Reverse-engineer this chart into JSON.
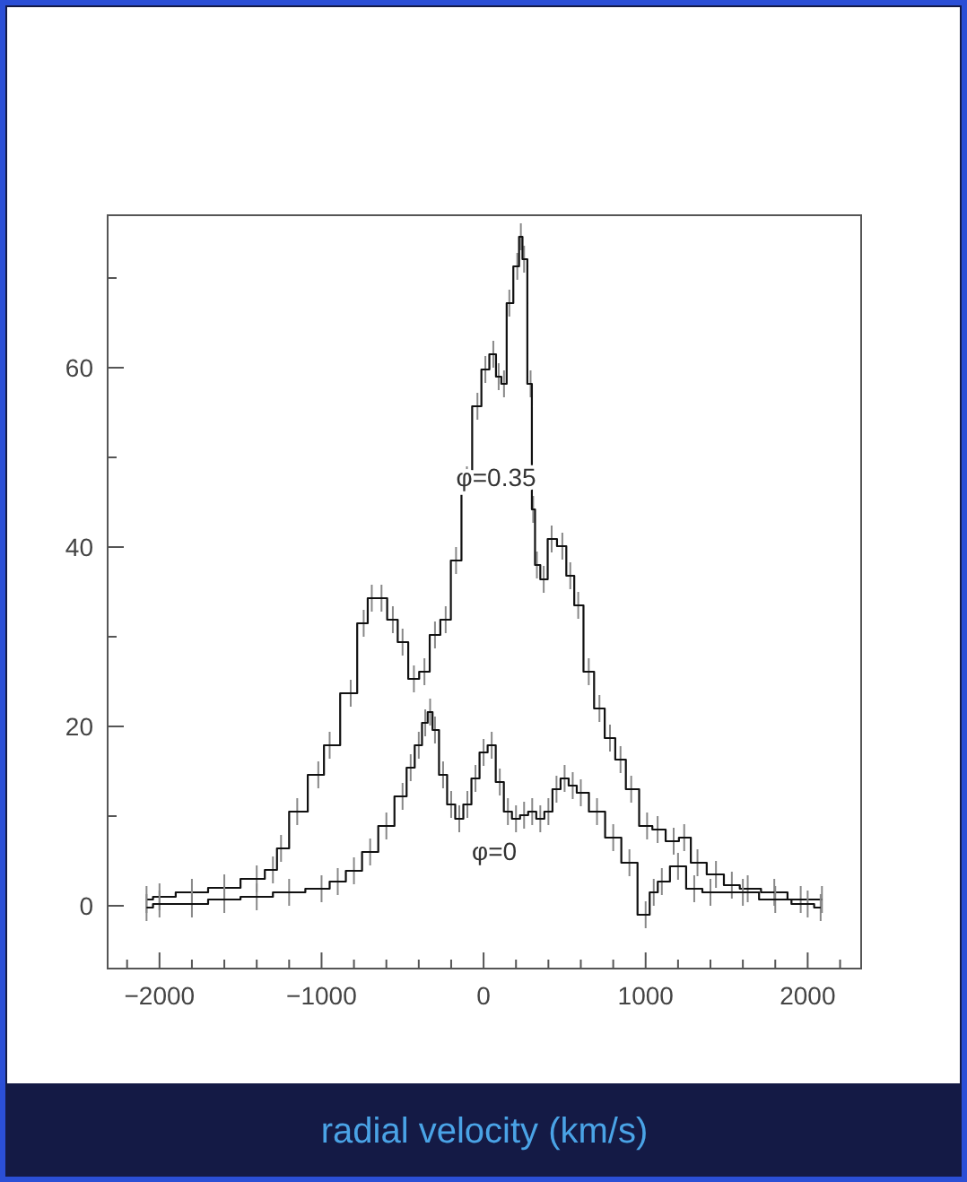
{
  "chart_data": {
    "type": "step",
    "xlabel": "radial velocity (km/s)",
    "xlim": [
      -2320,
      2330
    ],
    "ylim": [
      -7,
      77
    ],
    "xticks": [
      {
        "value": -2200,
        "label": null
      },
      {
        "value": -2000,
        "label": "−2000"
      },
      {
        "value": -1800,
        "label": null
      },
      {
        "value": -1600,
        "label": null
      },
      {
        "value": -1400,
        "label": null
      },
      {
        "value": -1200,
        "label": null
      },
      {
        "value": -1000,
        "label": "−1000"
      },
      {
        "value": -800,
        "label": null
      },
      {
        "value": -600,
        "label": null
      },
      {
        "value": -400,
        "label": null
      },
      {
        "value": -200,
        "label": null
      },
      0,
      {
        "value": 200,
        "label": null
      },
      {
        "value": 400,
        "label": null
      },
      {
        "value": 600,
        "label": null
      },
      {
        "value": 800,
        "label": null
      },
      1000,
      {
        "value": 1200,
        "label": null
      },
      {
        "value": 1400,
        "label": null
      },
      {
        "value": 1600,
        "label": null
      },
      {
        "value": 1800,
        "label": null
      },
      2000,
      {
        "value": 2200,
        "label": null
      }
    ],
    "yticks": [
      0,
      {
        "value": 10,
        "label": null
      },
      20,
      {
        "value": 30,
        "label": null
      },
      40,
      {
        "value": 50,
        "label": null
      },
      60,
      {
        "value": 70,
        "label": null
      }
    ],
    "grid": false,
    "marker": "none",
    "series": [
      {
        "color": "#111111",
        "x": [
          -2080,
          -2000,
          -1800,
          -1600,
          -1400,
          -1300,
          -1250,
          -1150,
          -1020,
          -950,
          -820,
          -740,
          -690,
          -630,
          -560,
          -500,
          -430,
          -365,
          -300,
          -234,
          -170,
          -103,
          -38,
          11,
          60,
          93,
          126,
          159,
          208,
          230,
          250,
          290,
          306,
          329,
          371,
          420,
          486,
          535,
          584,
          649,
          715,
          780,
          845,
          911,
          1009,
          1074,
          1173,
          1238,
          1320,
          1434,
          1532,
          1630,
          1794,
          1957,
          2088
        ],
        "values": [
          0.7,
          1,
          1.5,
          2,
          3,
          4,
          6.4,
          10.5,
          14.6,
          17.9,
          23.7,
          31.5,
          34.3,
          34.3,
          31.9,
          29.4,
          25.3,
          26.1,
          30.2,
          31.9,
          38.5,
          47.5,
          55.7,
          59.8,
          61.5,
          59,
          58.2,
          67.2,
          71.3,
          74.6,
          72.1,
          58.2,
          44.2,
          38,
          36.4,
          40.9,
          40.1,
          36.8,
          33.5,
          26.1,
          22,
          18.7,
          16.3,
          13,
          8.9,
          8.5,
          7.2,
          7.6,
          4.8,
          3.5,
          2.3,
          1.9,
          1.5,
          0.7,
          0.7
        ],
        "errors": [
          1.5,
          1.5,
          1.5,
          1.5,
          1.5,
          1.5,
          1.5,
          1.5,
          1.5,
          1.5,
          1.5,
          1.5,
          1.5,
          1.5,
          1.5,
          1.5,
          1.5,
          1.5,
          1.5,
          1.5,
          1.5,
          1.5,
          1.5,
          1.5,
          1.5,
          1.5,
          1.5,
          1.5,
          1.5,
          1.5,
          1.5,
          1.5,
          1.5,
          1.5,
          1.5,
          1.5,
          1.5,
          1.5,
          1.5,
          1.5,
          1.5,
          1.5,
          1.5,
          1.5,
          1.5,
          1.5,
          1.5,
          1.5,
          1.5,
          1.5,
          1.5,
          1.5,
          1.5,
          1.5,
          1.5
        ]
      },
      {
        "color": "#111111",
        "x": [
          -2080,
          -2000,
          -1800,
          -1600,
          -1400,
          -1200,
          -1000,
          -900,
          -800,
          -700,
          -600,
          -500,
          -450,
          -400,
          -360,
          -330,
          -300,
          -250,
          -200,
          -150,
          -100,
          -50,
          0,
          50,
          100,
          150,
          200,
          250,
          300,
          350,
          400,
          450,
          500,
          550,
          600,
          700,
          800,
          900,
          1000,
          1050,
          1100,
          1200,
          1300,
          1400,
          1600,
          1800,
          2000,
          2080
        ],
        "values": [
          -0.2,
          0.2,
          0.2,
          0.7,
          1,
          1.5,
          1.9,
          2.7,
          3.9,
          6,
          8.9,
          12.2,
          15.4,
          17.9,
          20.4,
          21.6,
          19.6,
          14.6,
          11.3,
          9.7,
          11.3,
          14.2,
          17.1,
          17.9,
          13.8,
          10.5,
          9.7,
          10.1,
          10.5,
          9.7,
          10.5,
          13,
          14.2,
          13.4,
          12.6,
          10.5,
          7.6,
          4.8,
          -1,
          1.5,
          2.7,
          4.4,
          1.9,
          1.5,
          1.5,
          0.7,
          0.2,
          -0.2
        ],
        "errors": [
          1.5,
          1.5,
          1.5,
          1.5,
          1.5,
          1.5,
          1.5,
          1.5,
          1.5,
          1.5,
          1.5,
          1.5,
          1.5,
          1.5,
          1.5,
          1.5,
          1.5,
          1.5,
          1.5,
          1.5,
          1.5,
          1.5,
          1.5,
          1.5,
          1.5,
          1.5,
          1.5,
          1.5,
          1.5,
          1.5,
          1.5,
          1.5,
          1.5,
          1.5,
          1.5,
          1.5,
          1.5,
          1.5,
          1.5,
          1.5,
          1.5,
          1.5,
          1.5,
          1.5,
          1.5,
          1.5,
          1.5,
          1.5
        ]
      }
    ],
    "annotations": [
      "φ=0.35",
      "φ=0"
    ]
  }
}
